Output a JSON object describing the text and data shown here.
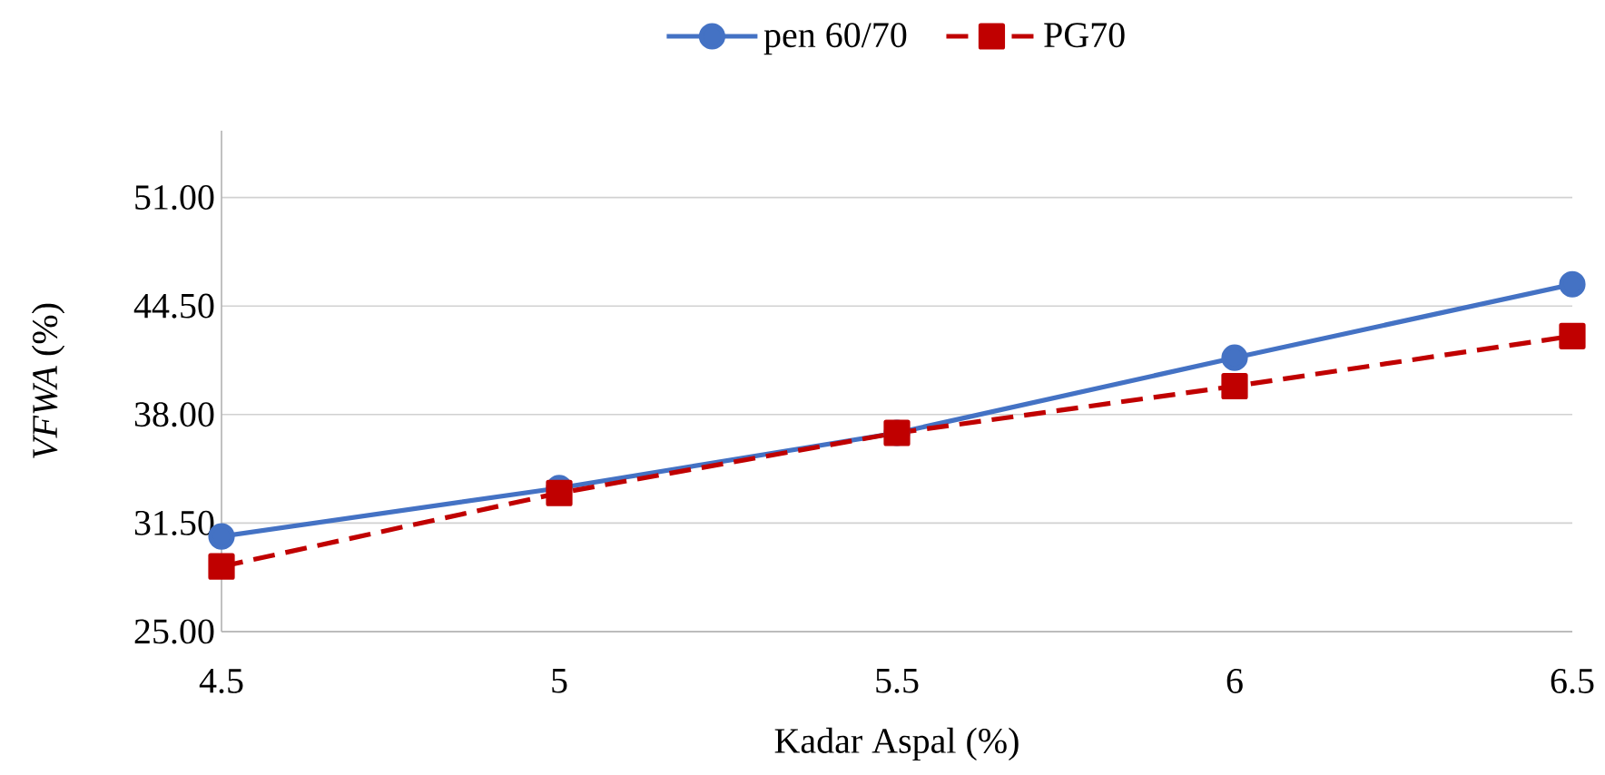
{
  "chart_data": {
    "type": "line",
    "xlabel": "Kadar Aspal (%)",
    "ylabel": "*VFWA* (%)",
    "x": [
      4.5,
      5,
      5.5,
      6,
      6.5
    ],
    "series": [
      {
        "name": "pen 60/70",
        "color": "#4472c4",
        "values": [
          30.7,
          33.6,
          36.9,
          41.4,
          45.8
        ],
        "marker": "circle",
        "line_style": "solid"
      },
      {
        "name": "PG70",
        "color": "#c00000",
        "values": [
          28.9,
          33.3,
          36.9,
          39.7,
          42.7
        ],
        "marker": "square",
        "line_style": "dashed"
      }
    ],
    "xlim": [
      4.5,
      6.5
    ],
    "xticks": [
      4.5,
      5,
      5.5,
      6,
      6.5
    ],
    "ylim": [
      25,
      55
    ],
    "yticks": [
      {
        "value": 25,
        "label": "25.00"
      },
      {
        "value": 31.5,
        "label": "31.50"
      },
      {
        "value": 38,
        "label": "38.00"
      },
      {
        "value": 44.5,
        "label": "44.50"
      },
      {
        "value": 51,
        "label": "51.00"
      }
    ],
    "grid": "y",
    "legend": "top"
  }
}
